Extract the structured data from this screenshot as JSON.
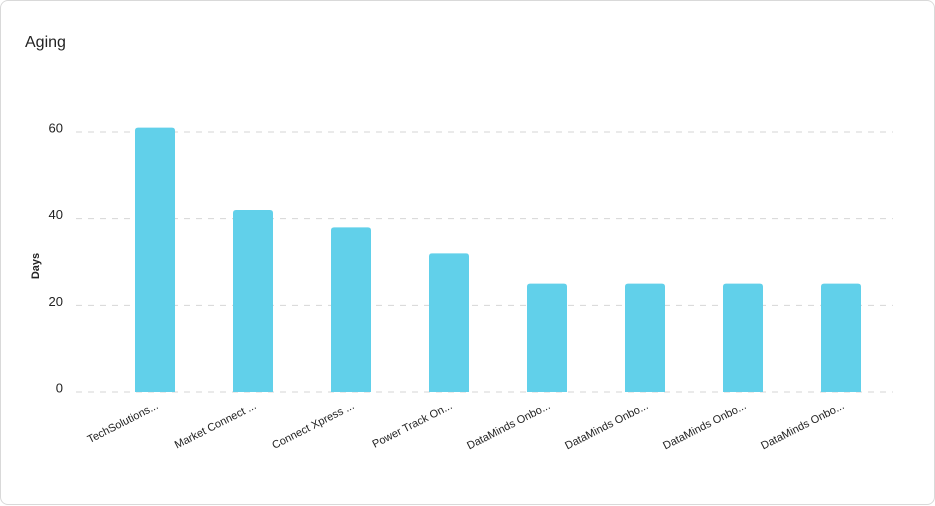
{
  "chart_data": {
    "type": "bar",
    "title": "Aging",
    "y_label": "Days",
    "categories": [
      "TechSolutions...",
      "Market Connect ...",
      "Connect Xpress ...",
      "Power Track On...",
      "DataMinds Onbo...",
      "DataMinds Onbo...",
      "DataMinds Onbo...",
      "DataMinds Onbo..."
    ],
    "values": [
      61,
      42,
      38,
      32,
      25,
      25,
      25,
      25
    ],
    "color": "#61d0ea",
    "ylim": [
      0,
      65
    ],
    "yticks": [
      0,
      20,
      40,
      60
    ],
    "grid": true
  }
}
